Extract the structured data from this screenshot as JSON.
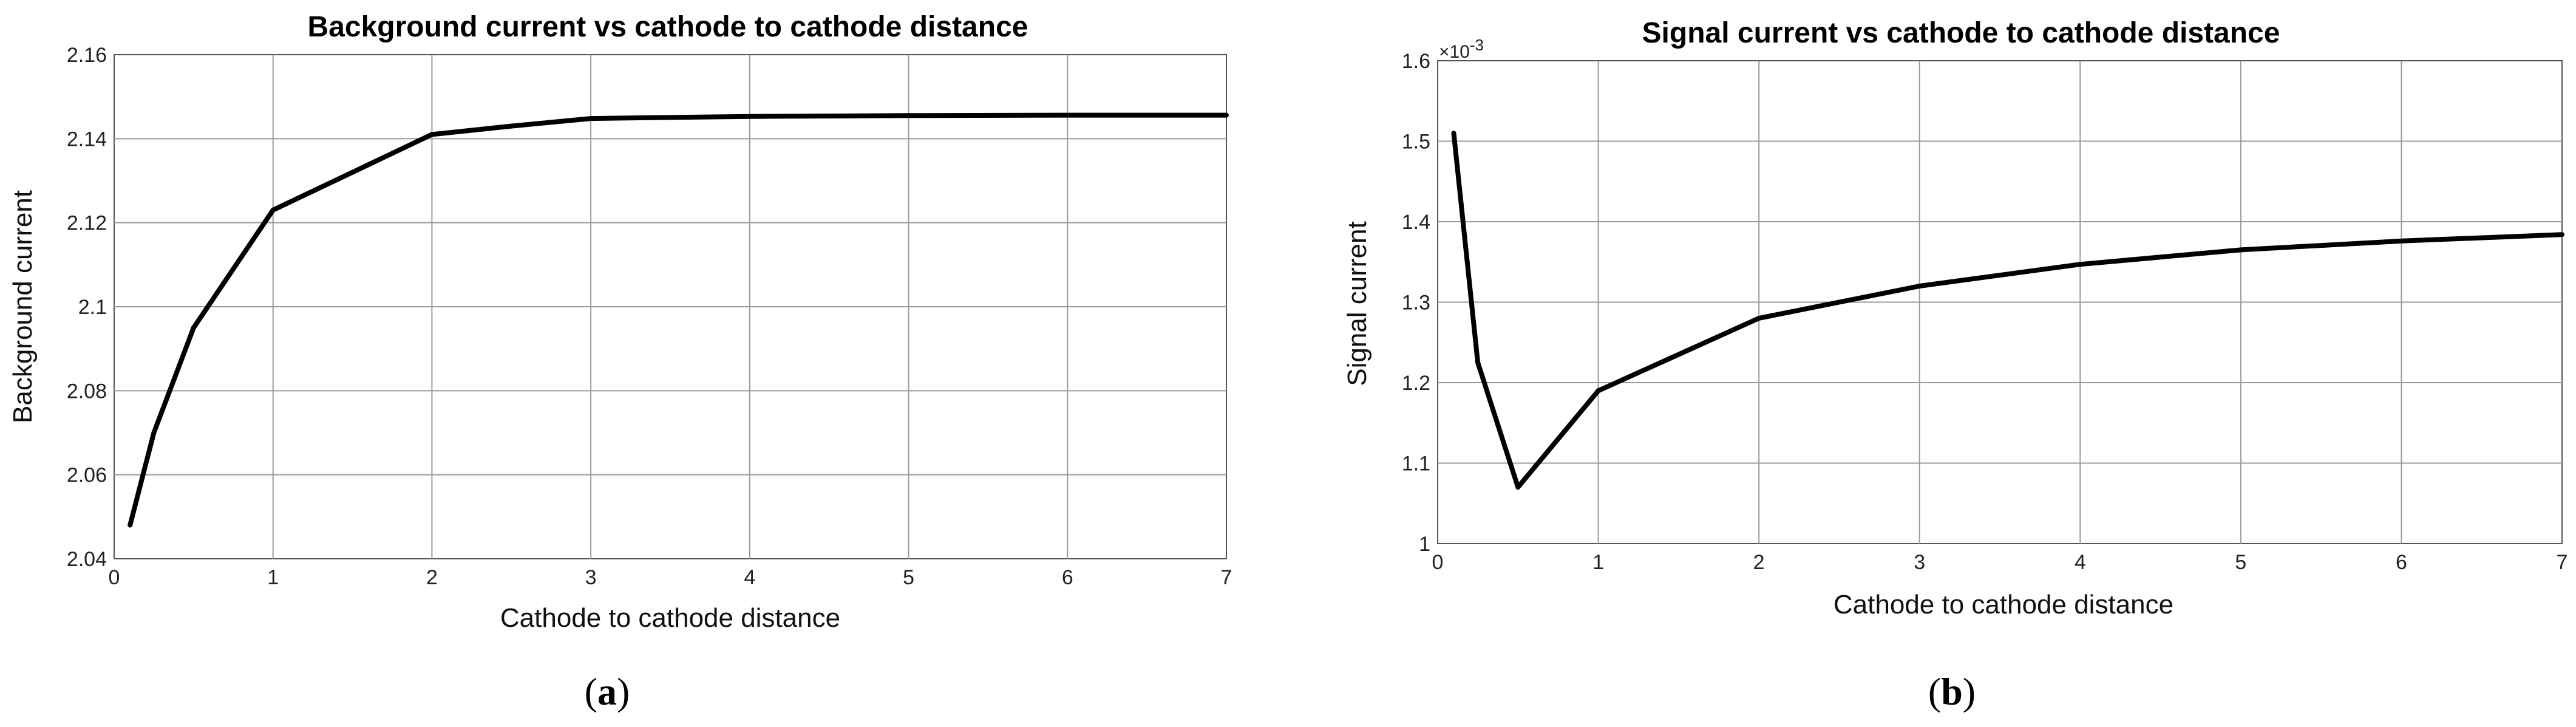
{
  "chart_data": [
    {
      "type": "line",
      "title": "Background current vs cathode to cathode distance",
      "xlabel": "Cathode to cathode distance",
      "ylabel": "Background current",
      "xlim": [
        0,
        7
      ],
      "ylim": [
        2.04,
        2.16
      ],
      "xticks": [
        "0",
        "1",
        "2",
        "3",
        "4",
        "5",
        "6",
        "7"
      ],
      "yticks": [
        "2.04",
        "2.06",
        "2.08",
        "2.1",
        "2.12",
        "2.14",
        "2.16"
      ],
      "grid": true,
      "x": [
        0.1,
        0.25,
        0.5,
        1,
        2,
        2.5,
        3,
        4,
        5,
        6,
        7
      ],
      "series": [
        {
          "values": [
            2.048,
            2.07,
            2.095,
            2.123,
            2.141,
            2.143,
            2.1448,
            2.1453,
            2.1455,
            2.1456,
            2.1456
          ],
          "color": "#000000"
        }
      ],
      "caption_paren_open": "(",
      "caption_letter": "a",
      "caption_paren_close": ")"
    },
    {
      "type": "line",
      "title": "Signal current vs cathode to cathode distance",
      "xlabel": "Cathode to cathode distance",
      "ylabel": "Signal current",
      "xlim": [
        0,
        7
      ],
      "ylim": [
        1.0,
        1.6
      ],
      "y_multiplier": "×10",
      "y_multiplier_exp": "-3",
      "xticks": [
        "0",
        "1",
        "2",
        "3",
        "4",
        "5",
        "6",
        "7"
      ],
      "yticks": [
        "1",
        "1.1",
        "1.2",
        "1.3",
        "1.4",
        "1.5",
        "1.6"
      ],
      "grid": true,
      "x": [
        0.1,
        0.25,
        0.5,
        1,
        2,
        3,
        4,
        5,
        6,
        7
      ],
      "series": [
        {
          "values": [
            1.51,
            1.225,
            1.07,
            1.19,
            1.28,
            1.32,
            1.347,
            1.365,
            1.376,
            1.384
          ],
          "color": "#000000"
        }
      ],
      "caption_paren_open": "(",
      "caption_letter": "b",
      "caption_paren_close": ")"
    }
  ]
}
